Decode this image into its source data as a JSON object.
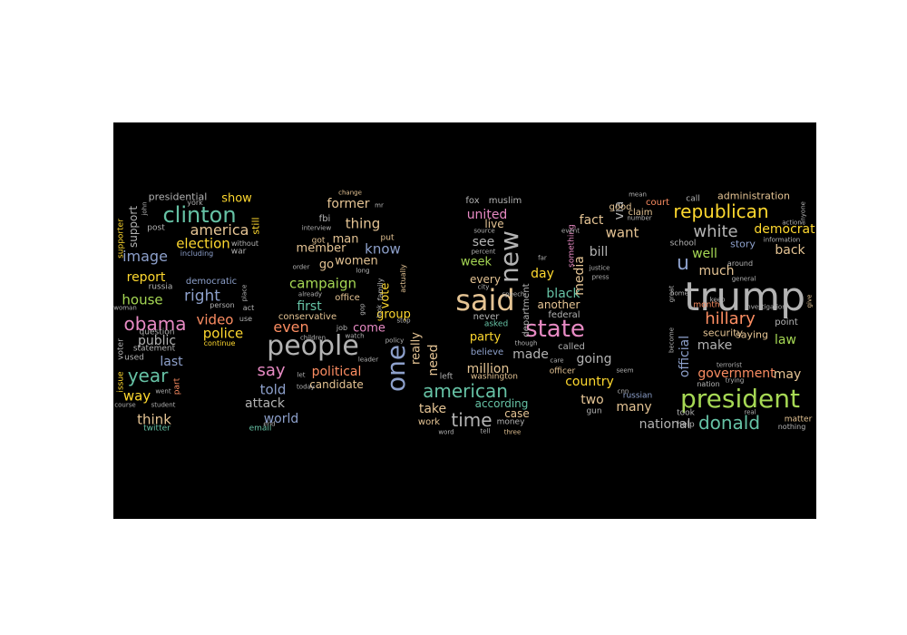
{
  "colors": {
    "background": "#ffffff",
    "panel": "#000000",
    "palette": [
      "#66c2a5",
      "#fc8d62",
      "#8da0cb",
      "#e78ac3",
      "#a6d854",
      "#ffd92f",
      "#e5c494",
      "#b3b3b3"
    ]
  },
  "words": [
    {
      "text": "trump",
      "size": 44,
      "color": "#b3b3b3"
    },
    {
      "text": "said",
      "size": 32,
      "color": "#e5c494"
    },
    {
      "text": "people",
      "size": 30,
      "color": "#b3b3b3"
    },
    {
      "text": "president",
      "size": 28,
      "color": "#a6d854"
    },
    {
      "text": "state",
      "size": 26,
      "color": "#e78ac3"
    },
    {
      "text": "new",
      "size": 28,
      "color": "#b3b3b3"
    },
    {
      "text": "one",
      "size": 28,
      "color": "#8da0cb"
    },
    {
      "text": "clinton",
      "size": 24,
      "color": "#66c2a5"
    },
    {
      "text": "obama",
      "size": 20,
      "color": "#e78ac3"
    },
    {
      "text": "american",
      "size": 20,
      "color": "#66c2a5"
    },
    {
      "text": "republican",
      "size": 20,
      "color": "#ffd92f"
    },
    {
      "text": "time",
      "size": 20,
      "color": "#b3b3b3"
    },
    {
      "text": "donald",
      "size": 20,
      "color": "#66c2a5"
    },
    {
      "text": "year",
      "size": 20,
      "color": "#66c2a5"
    },
    {
      "text": "say",
      "size": 18,
      "color": "#e78ac3"
    },
    {
      "text": "hillary",
      "size": 18,
      "color": "#fc8d62"
    },
    {
      "text": "u",
      "size": 22,
      "color": "#8da0cb"
    },
    {
      "text": "white",
      "size": 18,
      "color": "#b3b3b3"
    },
    {
      "text": "america",
      "size": 16,
      "color": "#e5c494"
    },
    {
      "text": "image",
      "size": 16,
      "color": "#8da0cb"
    },
    {
      "text": "election",
      "size": 15,
      "color": "#ffd92f"
    },
    {
      "text": "right",
      "size": 17,
      "color": "#8da0cb"
    },
    {
      "text": "house",
      "size": 15,
      "color": "#a6d854"
    },
    {
      "text": "video",
      "size": 15,
      "color": "#fc8d62"
    },
    {
      "text": "police",
      "size": 15,
      "color": "#ffd92f"
    },
    {
      "text": "campaign",
      "size": 15,
      "color": "#a6d854"
    },
    {
      "text": "know",
      "size": 15,
      "color": "#8da0cb"
    },
    {
      "text": "thing",
      "size": 15,
      "color": "#e5c494"
    },
    {
      "text": "former",
      "size": 14,
      "color": "#e5c494"
    },
    {
      "text": "even",
      "size": 16,
      "color": "#fc8d62"
    },
    {
      "text": "first",
      "size": 14,
      "color": "#66c2a5"
    },
    {
      "text": "political",
      "size": 14,
      "color": "#fc8d62"
    },
    {
      "text": "told",
      "size": 15,
      "color": "#8da0cb"
    },
    {
      "text": "world",
      "size": 14,
      "color": "#8da0cb"
    },
    {
      "text": "attack",
      "size": 14,
      "color": "#b3b3b3"
    },
    {
      "text": "way",
      "size": 15,
      "color": "#ffd92f"
    },
    {
      "text": "think",
      "size": 15,
      "color": "#e5c494"
    },
    {
      "text": "last",
      "size": 14,
      "color": "#8da0cb"
    },
    {
      "text": "public",
      "size": 14,
      "color": "#b3b3b3"
    },
    {
      "text": "report",
      "size": 14,
      "color": "#ffd92f"
    },
    {
      "text": "united",
      "size": 14,
      "color": "#e78ac3"
    },
    {
      "text": "see",
      "size": 14,
      "color": "#b3b3b3"
    },
    {
      "text": "week",
      "size": 13,
      "color": "#a6d854"
    },
    {
      "text": "million",
      "size": 14,
      "color": "#e5c494"
    },
    {
      "text": "need",
      "size": 14,
      "color": "#e5c494"
    },
    {
      "text": "really",
      "size": 13,
      "color": "#e5c494"
    },
    {
      "text": "take",
      "size": 14,
      "color": "#e5c494"
    },
    {
      "text": "fact",
      "size": 14,
      "color": "#e5c494"
    },
    {
      "text": "want",
      "size": 15,
      "color": "#e5c494"
    },
    {
      "text": "bill",
      "size": 14,
      "color": "#b3b3b3"
    },
    {
      "text": "day",
      "size": 14,
      "color": "#ffd92f"
    },
    {
      "text": "black",
      "size": 14,
      "color": "#66c2a5"
    },
    {
      "text": "going",
      "size": 14,
      "color": "#b3b3b3"
    },
    {
      "text": "country",
      "size": 14,
      "color": "#ffd92f"
    },
    {
      "text": "many",
      "size": 14,
      "color": "#e5c494"
    },
    {
      "text": "two",
      "size": 14,
      "color": "#e5c494"
    },
    {
      "text": "made",
      "size": 14,
      "color": "#b3b3b3"
    },
    {
      "text": "media",
      "size": 14,
      "color": "#e5c494"
    },
    {
      "text": "via",
      "size": 14,
      "color": "#b3b3b3"
    },
    {
      "text": "national",
      "size": 14,
      "color": "#b3b3b3"
    },
    {
      "text": "much",
      "size": 14,
      "color": "#e5c494"
    },
    {
      "text": "well",
      "size": 14,
      "color": "#a6d854"
    },
    {
      "text": "make",
      "size": 14,
      "color": "#b3b3b3"
    },
    {
      "text": "government",
      "size": 14,
      "color": "#fc8d62"
    },
    {
      "text": "may",
      "size": 14,
      "color": "#e5c494"
    },
    {
      "text": "law",
      "size": 14,
      "color": "#a6d854"
    },
    {
      "text": "back",
      "size": 14,
      "color": "#e5c494"
    },
    {
      "text": "democrat",
      "size": 14,
      "color": "#ffd92f"
    },
    {
      "text": "official",
      "size": 14,
      "color": "#8da0cb"
    },
    {
      "text": "group",
      "size": 13,
      "color": "#ffd92f"
    },
    {
      "text": "vote",
      "size": 13,
      "color": "#ffd92f"
    },
    {
      "text": "come",
      "size": 13,
      "color": "#e78ac3"
    },
    {
      "text": "go",
      "size": 13,
      "color": "#e5c494"
    },
    {
      "text": "women",
      "size": 13,
      "color": "#e5c494"
    },
    {
      "text": "man",
      "size": 13,
      "color": "#e5c494"
    },
    {
      "text": "member",
      "size": 13,
      "color": "#e5c494"
    },
    {
      "text": "candidate",
      "size": 12,
      "color": "#e5c494"
    },
    {
      "text": "party",
      "size": 13,
      "color": "#ffd92f"
    },
    {
      "text": "case",
      "size": 12,
      "color": "#e5c494"
    },
    {
      "text": "according",
      "size": 12,
      "color": "#66c2a5"
    },
    {
      "text": "another",
      "size": 12,
      "color": "#e5c494"
    },
    {
      "text": "every",
      "size": 12,
      "color": "#e5c494"
    },
    {
      "text": "live",
      "size": 12,
      "color": "#e5c494"
    },
    {
      "text": "show",
      "size": 13,
      "color": "#ffd92f"
    },
    {
      "text": "support",
      "size": 12,
      "color": "#b3b3b3"
    },
    {
      "text": "presidential",
      "size": 11,
      "color": "#b3b3b3"
    },
    {
      "text": "still",
      "size": 11,
      "color": "#ffd92f"
    },
    {
      "text": "administration",
      "size": 11,
      "color": "#e5c494"
    },
    {
      "text": "story",
      "size": 11,
      "color": "#8da0cb"
    },
    {
      "text": "security",
      "size": 11,
      "color": "#e5c494"
    },
    {
      "text": "saying",
      "size": 11,
      "color": "#e5c494"
    },
    {
      "text": "point",
      "size": 10,
      "color": "#b3b3b3"
    },
    {
      "text": "court",
      "size": 10,
      "color": "#fc8d62"
    },
    {
      "text": "claim",
      "size": 10,
      "color": "#e5c494"
    },
    {
      "text": "good",
      "size": 10,
      "color": "#e5c494"
    },
    {
      "text": "fox",
      "size": 10,
      "color": "#b3b3b3"
    },
    {
      "text": "muslim",
      "size": 10,
      "color": "#b3b3b3"
    },
    {
      "text": "fbi",
      "size": 10,
      "color": "#b3b3b3"
    },
    {
      "text": "conservative",
      "size": 10,
      "color": "#e5c494"
    },
    {
      "text": "office",
      "size": 10,
      "color": "#e5c494"
    },
    {
      "text": "democratic",
      "size": 10,
      "color": "#8da0cb"
    },
    {
      "text": "russia",
      "size": 9,
      "color": "#b3b3b3"
    },
    {
      "text": "question",
      "size": 9,
      "color": "#b3b3b3"
    },
    {
      "text": "statement",
      "size": 9,
      "color": "#b3b3b3"
    },
    {
      "text": "used",
      "size": 9,
      "color": "#b3b3b3"
    },
    {
      "text": "part",
      "size": 9,
      "color": "#fc8d62"
    },
    {
      "text": "issue",
      "size": 9,
      "color": "#ffd92f"
    },
    {
      "text": "voter",
      "size": 9,
      "color": "#b3b3b3"
    },
    {
      "text": "supporter",
      "size": 9,
      "color": "#ffd92f"
    },
    {
      "text": "twitter",
      "size": 9,
      "color": "#66c2a5"
    },
    {
      "text": "email",
      "size": 9,
      "color": "#66c2a5"
    },
    {
      "text": "called",
      "size": 10,
      "color": "#b3b3b3"
    },
    {
      "text": "believe",
      "size": 10,
      "color": "#8da0cb"
    },
    {
      "text": "never",
      "size": 10,
      "color": "#b3b3b3"
    },
    {
      "text": "federal",
      "size": 10,
      "color": "#b3b3b3"
    },
    {
      "text": "department",
      "size": 10,
      "color": "#b3b3b3"
    },
    {
      "text": "something",
      "size": 9,
      "color": "#e78ac3"
    },
    {
      "text": "officer",
      "size": 9,
      "color": "#e5c494"
    },
    {
      "text": "asked",
      "size": 9,
      "color": "#66c2a5"
    },
    {
      "text": "washington",
      "size": 9,
      "color": "#e5c494"
    },
    {
      "text": "left",
      "size": 9,
      "color": "#b3b3b3"
    },
    {
      "text": "work",
      "size": 10,
      "color": "#e5c494"
    },
    {
      "text": "money",
      "size": 9,
      "color": "#b3b3b3"
    },
    {
      "text": "russian",
      "size": 9,
      "color": "#8da0cb"
    },
    {
      "text": "gun",
      "size": 9,
      "color": "#b3b3b3"
    },
    {
      "text": "took",
      "size": 9,
      "color": "#b3b3b3"
    },
    {
      "text": "help",
      "size": 9,
      "color": "#b3b3b3"
    },
    {
      "text": "month",
      "size": 9,
      "color": "#fc8d62"
    },
    {
      "text": "school",
      "size": 9,
      "color": "#b3b3b3"
    },
    {
      "text": "call",
      "size": 9,
      "color": "#b3b3b3"
    },
    {
      "text": "matter",
      "size": 9,
      "color": "#e5c494"
    },
    {
      "text": "nothing",
      "size": 8,
      "color": "#b3b3b3"
    },
    {
      "text": "nation",
      "size": 8,
      "color": "#b3b3b3"
    },
    {
      "text": "post",
      "size": 9,
      "color": "#b3b3b3"
    },
    {
      "text": "york",
      "size": 8,
      "color": "#b3b3b3"
    },
    {
      "text": "including",
      "size": 8,
      "color": "#8da0cb"
    },
    {
      "text": "war",
      "size": 9,
      "color": "#b3b3b3"
    },
    {
      "text": "without",
      "size": 8,
      "color": "#b3b3b3"
    },
    {
      "text": "continue",
      "size": 8,
      "color": "#ffd92f"
    },
    {
      "text": "act",
      "size": 8,
      "color": "#b3b3b3"
    },
    {
      "text": "use",
      "size": 8,
      "color": "#b3b3b3"
    },
    {
      "text": "person",
      "size": 8,
      "color": "#b3b3b3"
    },
    {
      "text": "place",
      "size": 7,
      "color": "#b3b3b3"
    },
    {
      "text": "john",
      "size": 7,
      "color": "#b3b3b3"
    },
    {
      "text": "woman",
      "size": 7,
      "color": "#b3b3b3"
    },
    {
      "text": "course",
      "size": 7,
      "color": "#b3b3b3"
    },
    {
      "text": "went",
      "size": 7,
      "color": "#b3b3b3"
    },
    {
      "text": "student",
      "size": 7,
      "color": "#b3b3b3"
    },
    {
      "text": "change",
      "size": 7,
      "color": "#e5c494"
    },
    {
      "text": "interview",
      "size": 7,
      "color": "#b3b3b3"
    },
    {
      "text": "got",
      "size": 9,
      "color": "#e5c494"
    },
    {
      "text": "put",
      "size": 9,
      "color": "#e5c494"
    },
    {
      "text": "already",
      "size": 7,
      "color": "#b3b3b3"
    },
    {
      "text": "order",
      "size": 7,
      "color": "#b3b3b3"
    },
    {
      "text": "long",
      "size": 7,
      "color": "#b3b3b3"
    },
    {
      "text": "mr",
      "size": 7,
      "color": "#b3b3b3"
    },
    {
      "text": "family",
      "size": 8,
      "color": "#b3b3b3"
    },
    {
      "text": "look",
      "size": 7,
      "color": "#b3b3b3"
    },
    {
      "text": "actually",
      "size": 8,
      "color": "#e5c494"
    },
    {
      "text": "stop",
      "size": 7,
      "color": "#b3b3b3"
    },
    {
      "text": "job",
      "size": 8,
      "color": "#b3b3b3"
    },
    {
      "text": "children",
      "size": 7,
      "color": "#b3b3b3"
    },
    {
      "text": "watch",
      "size": 7,
      "color": "#b3b3b3"
    },
    {
      "text": "policy",
      "size": 7,
      "color": "#b3b3b3"
    },
    {
      "text": "gop",
      "size": 7,
      "color": "#b3b3b3"
    },
    {
      "text": "leader",
      "size": 7,
      "color": "#b3b3b3"
    },
    {
      "text": "let",
      "size": 7,
      "color": "#b3b3b3"
    },
    {
      "text": "today",
      "size": 7,
      "color": "#b3b3b3"
    },
    {
      "text": "end",
      "size": 7,
      "color": "#b3b3b3"
    },
    {
      "text": "word",
      "size": 7,
      "color": "#b3b3b3"
    },
    {
      "text": "tell",
      "size": 7,
      "color": "#b3b3b3"
    },
    {
      "text": "three",
      "size": 7,
      "color": "#e5c494"
    },
    {
      "text": "source",
      "size": 7,
      "color": "#b3b3b3"
    },
    {
      "text": "percent",
      "size": 7,
      "color": "#b3b3b3"
    },
    {
      "text": "city",
      "size": 7,
      "color": "#b3b3b3"
    },
    {
      "text": "speech",
      "size": 7,
      "color": "#b3b3b3"
    },
    {
      "text": "though",
      "size": 7,
      "color": "#b3b3b3"
    },
    {
      "text": "care",
      "size": 7,
      "color": "#b3b3b3"
    },
    {
      "text": "far",
      "size": 7,
      "color": "#b3b3b3"
    },
    {
      "text": "event",
      "size": 7,
      "color": "#b3b3b3"
    },
    {
      "text": "justice",
      "size": 7,
      "color": "#b3b3b3"
    },
    {
      "text": "press",
      "size": 7,
      "color": "#b3b3b3"
    },
    {
      "text": "mean",
      "size": 7,
      "color": "#b3b3b3"
    },
    {
      "text": "number",
      "size": 7,
      "color": "#b3b3b3"
    },
    {
      "text": "seem",
      "size": 7,
      "color": "#b3b3b3"
    },
    {
      "text": "cnn",
      "size": 7,
      "color": "#b3b3b3"
    },
    {
      "text": "around",
      "size": 8,
      "color": "#b3b3b3"
    },
    {
      "text": "general",
      "size": 7,
      "color": "#b3b3b3"
    },
    {
      "text": "information",
      "size": 7,
      "color": "#b3b3b3"
    },
    {
      "text": "action",
      "size": 7,
      "color": "#b3b3b3"
    },
    {
      "text": "anyone",
      "size": 7,
      "color": "#b3b3b3"
    },
    {
      "text": "investigation",
      "size": 7,
      "color": "#b3b3b3"
    },
    {
      "text": "keep",
      "size": 7,
      "color": "#b3b3b3"
    },
    {
      "text": "home",
      "size": 7,
      "color": "#b3b3b3"
    },
    {
      "text": "give",
      "size": 7,
      "color": "#e5c494"
    },
    {
      "text": "great",
      "size": 7,
      "color": "#b3b3b3"
    },
    {
      "text": "become",
      "size": 7,
      "color": "#b3b3b3"
    },
    {
      "text": "terrorist",
      "size": 7,
      "color": "#b3b3b3"
    },
    {
      "text": "trying",
      "size": 7,
      "color": "#b3b3b3"
    },
    {
      "text": "real",
      "size": 7,
      "color": "#b3b3b3"
    }
  ]
}
